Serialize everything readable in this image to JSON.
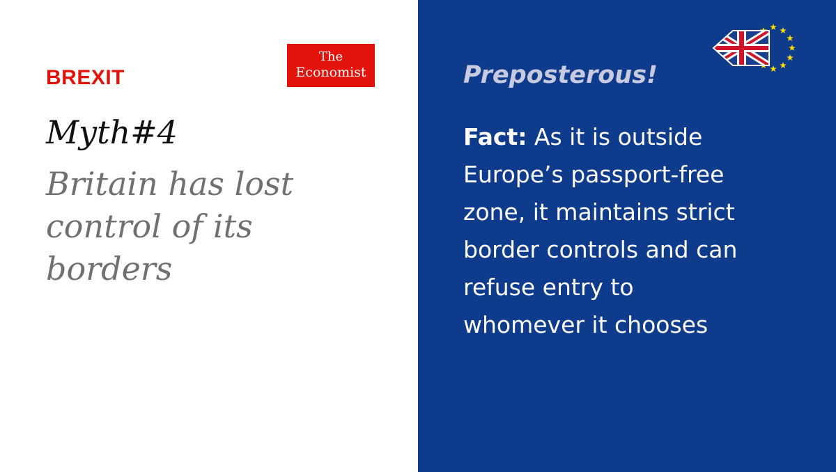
{
  "section": "BREXIT",
  "logo": {
    "line1": "The",
    "line2": "Economist"
  },
  "myth": {
    "number": "Myth#4",
    "lines": [
      "Britain has lost",
      "control of its",
      "borders"
    ]
  },
  "verdict": "Preposterous!",
  "fact": {
    "label": "Fact:",
    "lines": [
      " As it is outside",
      "Europe’s passport-free",
      "zone, it maintains strict",
      "border controls and can",
      "refuse entry to",
      "whomever it chooses"
    ]
  },
  "colors": {
    "brand_red": "#e3120b",
    "panel_blue": "#0e3b8c",
    "verdict_text": "#c8cbe0",
    "myth_grey": "#707070",
    "star_yellow": "#ffdd00"
  },
  "badge_icon": "uk-flag-arrow-with-eu-stars-icon"
}
